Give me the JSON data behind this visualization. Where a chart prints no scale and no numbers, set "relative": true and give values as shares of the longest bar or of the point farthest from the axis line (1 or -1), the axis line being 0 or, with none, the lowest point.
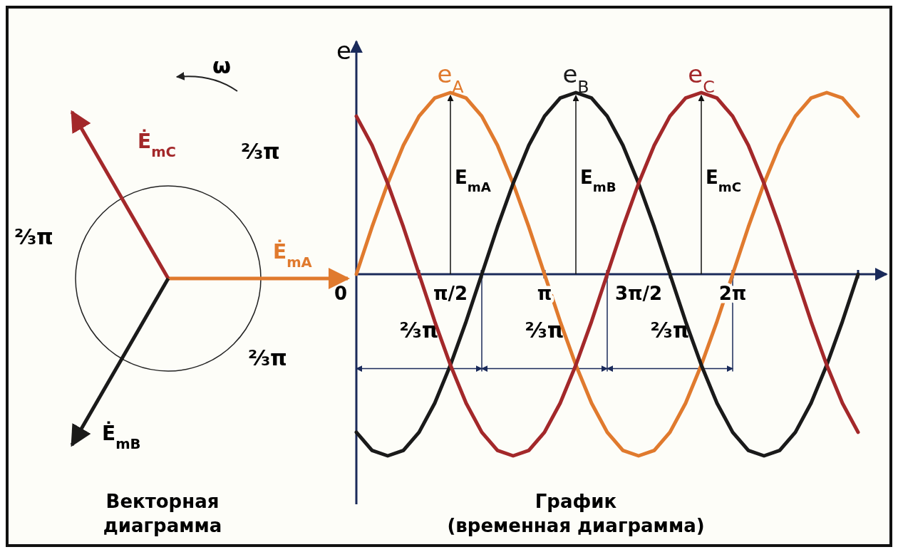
{
  "chart_data": {
    "type": "line",
    "relative": true,
    "ylabel": "e",
    "xlabel": "График\n(временная диаграмма)",
    "categories": [
      null,
      null,
      null,
      null,
      null,
      null,
      "π/2",
      null,
      null,
      null,
      null,
      null,
      "π",
      null,
      null,
      null,
      null,
      null,
      "3π/2",
      null,
      null,
      null,
      null,
      null,
      "2π",
      null,
      null,
      null,
      null,
      null,
      null,
      null,
      null
    ],
    "series": [
      {
        "name": "e$_{A}$",
        "color": "#e07a2e",
        "values": [
          0,
          0.26,
          0.5,
          0.71,
          0.87,
          0.97,
          1,
          0.97,
          0.87,
          0.71,
          0.5,
          0.26,
          0,
          -0.26,
          -0.5,
          -0.71,
          -0.87,
          -0.97,
          -1,
          -0.97,
          -0.87,
          -0.71,
          -0.5,
          -0.26,
          0,
          0.26,
          0.5,
          0.71,
          0.87,
          0.97,
          1,
          0.97,
          0.87
        ]
      },
      {
        "name": "e$_{B}$",
        "color": "#1a1a1a",
        "values": [
          -0.87,
          -0.97,
          -1,
          -0.97,
          -0.87,
          -0.71,
          -0.5,
          -0.26,
          0,
          0.26,
          0.5,
          0.71,
          0.87,
          0.97,
          1,
          0.97,
          0.87,
          0.71,
          0.5,
          0.26,
          0,
          -0.26,
          -0.5,
          -0.71,
          -0.87,
          -0.97,
          -1,
          -0.97,
          -0.87,
          -0.71,
          -0.5,
          -0.26,
          0
        ]
      },
      {
        "name": "e$_{C}$",
        "color": "#a3282a",
        "values": [
          0.87,
          0.71,
          0.5,
          0.26,
          0,
          -0.26,
          -0.5,
          -0.71,
          -0.87,
          -0.97,
          -1,
          -0.97,
          -0.87,
          -0.71,
          -0.5,
          -0.26,
          0,
          0.26,
          0.5,
          0.71,
          0.87,
          0.97,
          1,
          0.97,
          0.87,
          0.71,
          0.5,
          0.26,
          0,
          -0.26,
          -0.5,
          -0.71,
          -0.87
        ]
      }
    ],
    "annotations": [
      "ω",
      "Ė$_{mC}$",
      "Ė$_{mA}$",
      "Ė$_{mB}$",
      "⅔π",
      "⅔π",
      "⅔π",
      "Векторная\nдиаграмма",
      "E$_{mA}$",
      "E$_{mB}$",
      "E$_{mC}$",
      "⅔π",
      "⅔π",
      "⅔π",
      "0"
    ]
  }
}
